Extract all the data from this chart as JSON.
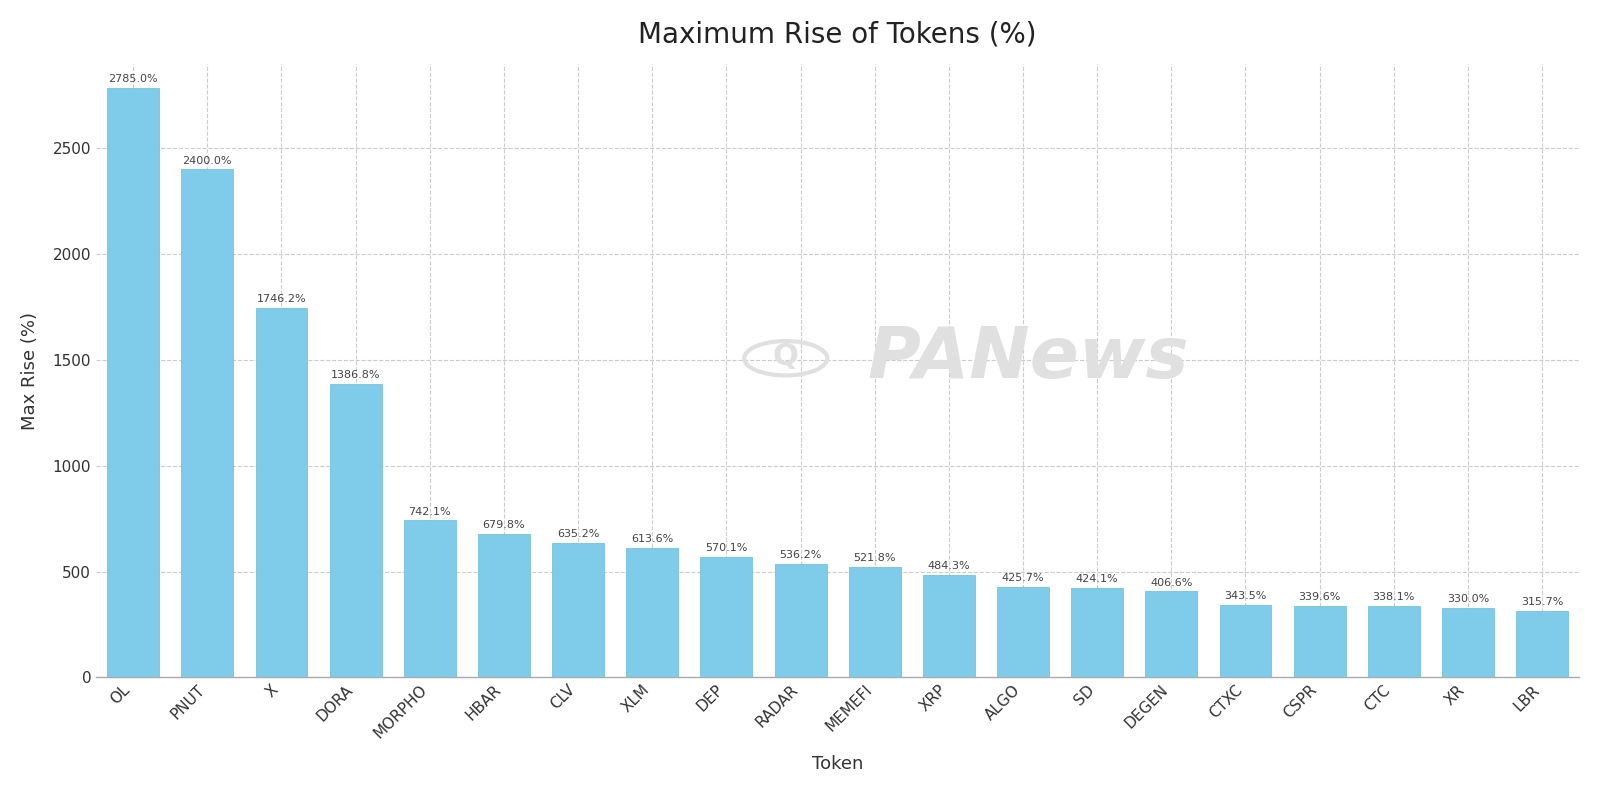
{
  "tokens": [
    "OL",
    "PNUT",
    "X",
    "DORA",
    "MORPHO",
    "HBAR",
    "CLV",
    "XLM",
    "DEP",
    "RADAR",
    "MEMEFI",
    "XRP",
    "ALGO",
    "SD",
    "DEGEN",
    "CTXC",
    "CSPR",
    "CTC",
    "XR",
    "LBR"
  ],
  "values": [
    2785.0,
    2400.0,
    1746.2,
    1386.8,
    742.1,
    679.8,
    635.2,
    613.6,
    570.1,
    536.2,
    521.8,
    484.3,
    425.7,
    424.1,
    406.6,
    343.5,
    339.6,
    338.1,
    330.0,
    315.7
  ],
  "bar_color": "#7ECCEA",
  "bar_edgecolor": "#6BB8D8",
  "title": "Maximum Rise of Tokens (%)",
  "xlabel": "Token",
  "ylabel": "Max Rise (%)",
  "title_fontsize": 20,
  "label_fontsize": 13,
  "tick_fontsize": 11,
  "annotation_fontsize": 8.0,
  "background_color": "#ffffff",
  "grid_color": "#cccccc",
  "ylim": [
    0,
    2900
  ],
  "yticks": [
    0,
    500,
    1000,
    1500,
    2000,
    2500
  ],
  "watermark_text": "PANews",
  "watermark_color": "#e0e0e0"
}
